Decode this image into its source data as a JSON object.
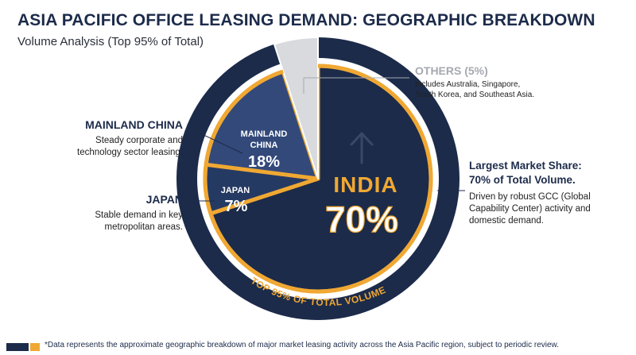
{
  "header": {
    "title": "ASIA PACIFIC OFFICE LEASING DEMAND: GEOGRAPHIC BREAKDOWN",
    "subtitle": "Volume Analysis (Top 95% of Total)"
  },
  "chart_data": {
    "type": "pie",
    "title": "ASIA PACIFIC OFFICE LEASING DEMAND: GEOGRAPHIC BREAKDOWN",
    "subtitle": "Volume Analysis (Top 95% of Total)",
    "slices": [
      {
        "name": "INDIA",
        "value": 70,
        "value_label": "70%",
        "color": "#1c2b4a"
      },
      {
        "name": "JAPAN",
        "value": 7,
        "value_label": "7%",
        "color": "#253a63"
      },
      {
        "name": "MAINLAND CHINA",
        "value": 18,
        "value_label": "18%",
        "color": "#33497a"
      },
      {
        "name": "OTHERS",
        "value": 5,
        "value_label": "(5%)",
        "color": "#d8dadd"
      }
    ],
    "slice_labels": {
      "india": "INDIA",
      "japan": "JAPAN",
      "china_line1": "MAINLAND",
      "china_line2": "CHINA"
    },
    "ring_label": "TOP 95% OF TOTAL VOLUME",
    "colors": {
      "navy": "#1c2b4a",
      "gold": "#f0a833",
      "grey": "#d8dadd",
      "light_text": "#ffffff"
    }
  },
  "callouts": {
    "china": {
      "head": "MAINLAND CHINA",
      "desc1": "Steady corporate and",
      "desc2": "technology sector leasing."
    },
    "japan": {
      "head": "JAPAN",
      "desc1": "Stable demand in key",
      "desc2": "metropolitan areas."
    },
    "others": {
      "head": "OTHERS (5%)",
      "desc1": "Includes Australia, Singapore,",
      "desc2": "South Korea, and Southeast Asia."
    },
    "india": {
      "head1": "Largest Market Share:",
      "head2": "70% of Total Volume.",
      "desc1": "Driven by robust GCC (Global",
      "desc2": "Capability Center) activity and",
      "desc3": "domestic demand."
    }
  },
  "footer": {
    "note": "*Data represents the approximate geographic breakdown of major market leasing activity across the Asia Pacific region, subject to periodic review."
  }
}
